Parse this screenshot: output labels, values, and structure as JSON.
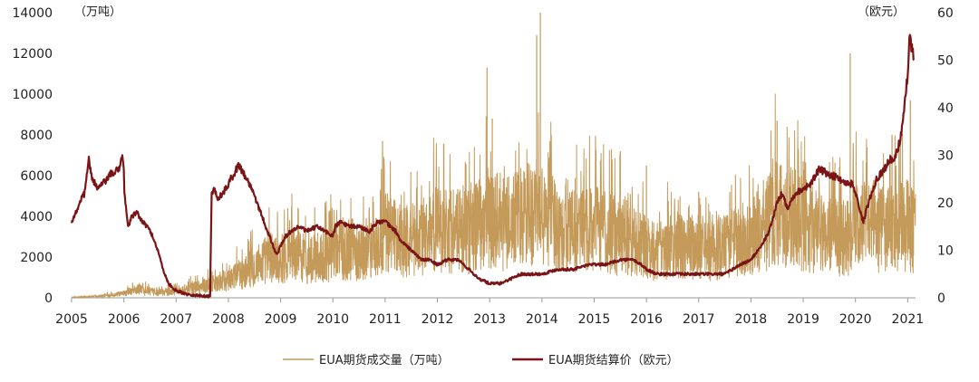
{
  "chart_data": {
    "type": "line",
    "left_axis_unit": "（万吨）",
    "right_axis_unit": "（欧元）",
    "x_ticks": [
      "2005",
      "2006",
      "2007",
      "2008",
      "2009",
      "2010",
      "2011",
      "2012",
      "2013",
      "2014",
      "2015",
      "2016",
      "2017",
      "2018",
      "2019",
      "2020",
      "2021"
    ],
    "xlim": [
      2005.0,
      2021.15
    ],
    "y_left": {
      "ticks": [
        0,
        2000,
        4000,
        6000,
        8000,
        10000,
        12000,
        14000
      ],
      "lim": [
        0,
        14000
      ]
    },
    "y_right": {
      "ticks": [
        0,
        10,
        20,
        30,
        40,
        50,
        60
      ],
      "lim": [
        0,
        60
      ]
    },
    "grid": false,
    "legend_position": "bottom-center",
    "series": [
      {
        "name": "EUA期货成交量（万吨）",
        "axis": "left",
        "color": "#c49a5a",
        "points": [
          [
            2005.0,
            20
          ],
          [
            2005.5,
            80
          ],
          [
            2006.0,
            200
          ],
          [
            2006.3,
            450
          ],
          [
            2006.6,
            250
          ],
          [
            2007.0,
            350
          ],
          [
            2007.3,
            500
          ],
          [
            2007.6,
            600
          ],
          [
            2007.8,
            700
          ],
          [
            2008.0,
            900
          ],
          [
            2008.3,
            1200
          ],
          [
            2008.6,
            1700
          ],
          [
            2008.8,
            2000
          ],
          [
            2009.0,
            1900
          ],
          [
            2009.2,
            2200
          ],
          [
            2009.5,
            1800
          ],
          [
            2009.8,
            2000
          ],
          [
            2010.0,
            2200
          ],
          [
            2010.3,
            2400
          ],
          [
            2010.6,
            2300
          ],
          [
            2010.9,
            2500
          ],
          [
            2011.0,
            3200
          ],
          [
            2011.2,
            2900
          ],
          [
            2011.5,
            2800
          ],
          [
            2011.8,
            3000
          ],
          [
            2012.0,
            3500
          ],
          [
            2012.3,
            3300
          ],
          [
            2012.6,
            3200
          ],
          [
            2012.8,
            3700
          ],
          [
            2013.0,
            4000
          ],
          [
            2013.3,
            3600
          ],
          [
            2013.6,
            3900
          ],
          [
            2013.9,
            4200
          ],
          [
            2014.0,
            3800
          ],
          [
            2014.3,
            3600
          ],
          [
            2014.6,
            3200
          ],
          [
            2014.9,
            3400
          ],
          [
            2015.2,
            3300
          ],
          [
            2015.5,
            3000
          ],
          [
            2015.8,
            2800
          ],
          [
            2016.0,
            2400
          ],
          [
            2016.3,
            2300
          ],
          [
            2016.6,
            2600
          ],
          [
            2016.9,
            2500
          ],
          [
            2017.0,
            2200
          ],
          [
            2017.3,
            2300
          ],
          [
            2017.6,
            2600
          ],
          [
            2017.9,
            2900
          ],
          [
            2018.0,
            3000
          ],
          [
            2018.3,
            3600
          ],
          [
            2018.5,
            4500
          ],
          [
            2018.7,
            4000
          ],
          [
            2019.0,
            3600
          ],
          [
            2019.3,
            3200
          ],
          [
            2019.6,
            3000
          ],
          [
            2019.9,
            2900
          ],
          [
            2020.0,
            3400
          ],
          [
            2020.3,
            3600
          ],
          [
            2020.6,
            3300
          ],
          [
            2020.9,
            3500
          ],
          [
            2021.0,
            3600
          ],
          [
            2021.1,
            3300
          ]
        ],
        "spikes": [
          [
            2010.95,
            7700
          ],
          [
            2012.95,
            11300
          ],
          [
            2013.05,
            8800
          ],
          [
            2013.9,
            12900
          ],
          [
            2013.97,
            15300
          ],
          [
            2014.8,
            6000
          ],
          [
            2015.5,
            7200
          ],
          [
            2016.0,
            6500
          ],
          [
            2017.0,
            5200
          ],
          [
            2018.5,
            8700
          ],
          [
            2019.0,
            6700
          ],
          [
            2019.9,
            12000
          ],
          [
            2020.7,
            8000
          ],
          [
            2021.05,
            9700
          ]
        ]
      },
      {
        "name": "EUA期货结算价（欧元）",
        "axis": "right",
        "color": "#7a1416",
        "points": [
          [
            2005.0,
            16
          ],
          [
            2005.05,
            17
          ],
          [
            2005.15,
            20
          ],
          [
            2005.25,
            22
          ],
          [
            2005.33,
            29
          ],
          [
            2005.4,
            25
          ],
          [
            2005.5,
            23
          ],
          [
            2005.6,
            24
          ],
          [
            2005.75,
            26
          ],
          [
            2005.9,
            27
          ],
          [
            2005.97,
            30
          ],
          [
            2006.0,
            27
          ],
          [
            2006.01,
            22
          ],
          [
            2006.05,
            18
          ],
          [
            2006.08,
            15
          ],
          [
            2006.15,
            17
          ],
          [
            2006.25,
            18
          ],
          [
            2006.35,
            16
          ],
          [
            2006.45,
            15
          ],
          [
            2006.55,
            13
          ],
          [
            2006.65,
            10
          ],
          [
            2006.75,
            6
          ],
          [
            2006.85,
            3
          ],
          [
            2007.0,
            1.5
          ],
          [
            2007.2,
            0.8
          ],
          [
            2007.4,
            0.5
          ],
          [
            2007.65,
            0.3
          ],
          [
            2007.68,
            22
          ],
          [
            2007.72,
            23
          ],
          [
            2007.8,
            21
          ],
          [
            2007.9,
            22
          ],
          [
            2008.0,
            24
          ],
          [
            2008.1,
            26
          ],
          [
            2008.2,
            28
          ],
          [
            2008.25,
            27
          ],
          [
            2008.35,
            25
          ],
          [
            2008.45,
            23
          ],
          [
            2008.55,
            20
          ],
          [
            2008.65,
            17
          ],
          [
            2008.75,
            14
          ],
          [
            2008.85,
            11
          ],
          [
            2008.93,
            9
          ],
          [
            2009.0,
            11
          ],
          [
            2009.1,
            13
          ],
          [
            2009.2,
            14
          ],
          [
            2009.35,
            15
          ],
          [
            2009.5,
            14
          ],
          [
            2009.7,
            15
          ],
          [
            2009.85,
            14
          ],
          [
            2010.0,
            13
          ],
          [
            2010.05,
            15
          ],
          [
            2010.15,
            16
          ],
          [
            2010.3,
            15
          ],
          [
            2010.5,
            15
          ],
          [
            2010.7,
            14
          ],
          [
            2010.85,
            16
          ],
          [
            2011.0,
            16
          ],
          [
            2011.1,
            15
          ],
          [
            2011.2,
            14
          ],
          [
            2011.3,
            12
          ],
          [
            2011.5,
            10
          ],
          [
            2011.7,
            8
          ],
          [
            2011.85,
            8
          ],
          [
            2012.0,
            7
          ],
          [
            2012.2,
            8
          ],
          [
            2012.4,
            8
          ],
          [
            2012.6,
            6
          ],
          [
            2012.8,
            4
          ],
          [
            2013.0,
            3
          ],
          [
            2013.2,
            3
          ],
          [
            2013.4,
            4
          ],
          [
            2013.6,
            5
          ],
          [
            2013.8,
            5
          ],
          [
            2014.0,
            5
          ],
          [
            2014.3,
            6
          ],
          [
            2014.6,
            6
          ],
          [
            2014.9,
            7
          ],
          [
            2015.2,
            7
          ],
          [
            2015.5,
            8
          ],
          [
            2015.75,
            8
          ],
          [
            2015.9,
            7
          ],
          [
            2016.0,
            6
          ],
          [
            2016.2,
            5
          ],
          [
            2016.4,
            5
          ],
          [
            2016.6,
            5
          ],
          [
            2016.8,
            5
          ],
          [
            2017.0,
            5
          ],
          [
            2017.3,
            5
          ],
          [
            2017.5,
            5
          ],
          [
            2017.8,
            7
          ],
          [
            2018.0,
            8
          ],
          [
            2018.2,
            11
          ],
          [
            2018.35,
            14
          ],
          [
            2018.5,
            20
          ],
          [
            2018.6,
            22
          ],
          [
            2018.7,
            19
          ],
          [
            2018.85,
            22
          ],
          [
            2019.0,
            23
          ],
          [
            2019.15,
            24
          ],
          [
            2019.3,
            27
          ],
          [
            2019.5,
            26
          ],
          [
            2019.7,
            25
          ],
          [
            2019.85,
            24
          ],
          [
            2019.95,
            24
          ],
          [
            2020.0,
            22
          ],
          [
            2020.15,
            16
          ],
          [
            2020.25,
            20
          ],
          [
            2020.4,
            25
          ],
          [
            2020.55,
            27
          ],
          [
            2020.65,
            29
          ],
          [
            2020.75,
            29
          ],
          [
            2020.85,
            33
          ],
          [
            2020.93,
            39
          ],
          [
            2021.0,
            47
          ],
          [
            2021.04,
            56
          ],
          [
            2021.08,
            52
          ],
          [
            2021.12,
            50
          ]
        ]
      }
    ]
  }
}
